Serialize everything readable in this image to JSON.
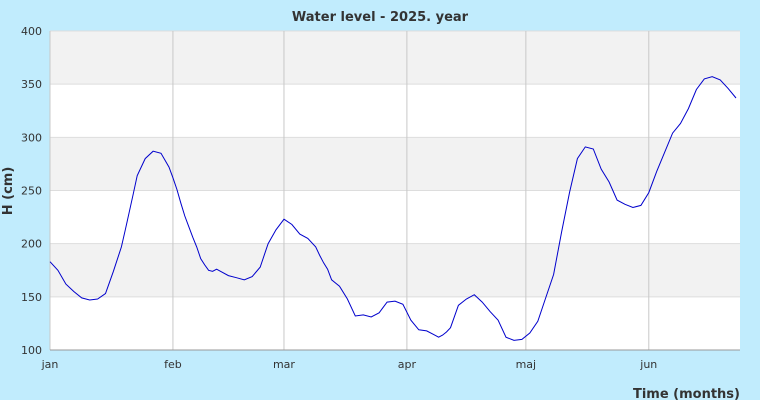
{
  "chart_data": {
    "type": "line",
    "title": "Water level - 2025. year",
    "xlabel": "Time (months)",
    "ylabel": "H (cm)",
    "ylim": [
      100,
      400
    ],
    "yticks": [
      100,
      150,
      200,
      250,
      300,
      350,
      400
    ],
    "xlim_days": [
      1,
      175
    ],
    "xticks": [
      {
        "label": "jan",
        "day": 1
      },
      {
        "label": "feb",
        "day": 32
      },
      {
        "label": "mar",
        "day": 60
      },
      {
        "label": "apr",
        "day": 91
      },
      {
        "label": "maj",
        "day": 121
      },
      {
        "label": "jun",
        "day": 152
      }
    ],
    "grid": true,
    "line_color": "#0000cc",
    "band_color": "#f2f2f2",
    "series": [
      {
        "name": "",
        "x": [
          1,
          3,
          5,
          7,
          9,
          11,
          13,
          15,
          17,
          19,
          20,
          21,
          22,
          23,
          25,
          27,
          29,
          31,
          32,
          33,
          34,
          35,
          36,
          37,
          38,
          39,
          40,
          41,
          42,
          43,
          44,
          46,
          48,
          50,
          52,
          54,
          56,
          58,
          60,
          62,
          64,
          66,
          68,
          69,
          70,
          71,
          72,
          73,
          74,
          76,
          78,
          80,
          82,
          84,
          86,
          88,
          90,
          92,
          94,
          96,
          98,
          99,
          100,
          101,
          102,
          104,
          106,
          108,
          110,
          112,
          114,
          116,
          118,
          120,
          122,
          124,
          126,
          128,
          130,
          132,
          134,
          136,
          138,
          140,
          142,
          144,
          146,
          148,
          150,
          152,
          154,
          156,
          158,
          160,
          162,
          164,
          166,
          168,
          170,
          172,
          174
        ],
        "y": [
          183,
          175,
          162,
          155,
          149,
          147,
          148,
          153,
          174,
          197,
          213,
          230,
          247,
          264,
          280,
          287,
          285,
          272,
          262,
          251,
          238,
          226,
          216,
          206,
          197,
          186,
          180,
          175,
          174,
          176,
          174,
          170,
          168,
          166,
          169,
          178,
          200,
          213,
          223,
          218,
          209,
          205,
          197,
          189,
          182,
          176,
          166,
          163,
          160,
          148,
          132,
          133,
          131,
          135,
          145,
          146,
          143,
          128,
          119,
          118,
          114,
          112,
          114,
          117,
          121,
          142,
          148,
          152,
          145,
          136,
          128,
          112,
          109,
          110,
          116,
          127,
          149,
          171,
          211,
          248,
          280,
          291,
          289,
          270,
          258,
          241,
          237,
          234,
          236,
          248,
          268,
          286,
          304,
          313,
          327,
          345,
          355,
          357,
          354,
          346,
          337
        ],
        "note_skip": true
      }
    ]
  }
}
